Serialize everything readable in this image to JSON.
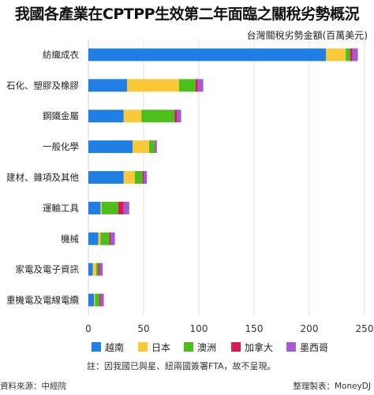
{
  "header": {
    "title": "我國各產業在CPTPP生效第二年面臨之關稅劣勢概況",
    "subtitle": "台灣關稅劣勢金額(百萬美元)"
  },
  "footer": {
    "source": "資料來源：中經院",
    "credit": "整理製表：MoneyDJ",
    "note": "註：因我國已與星、紐兩國簽署FTA，故不呈現。"
  },
  "colors": {
    "越南": "#1f7fe5",
    "日本": "#f9c93a",
    "澳洲": "#4cbf1c",
    "加拿大": "#d81b55",
    "墨西哥": "#a25bd2"
  },
  "chart_data": {
    "type": "bar",
    "orientation": "horizontal",
    "stacked": true,
    "title": "我國各產業在CPTPP生效第二年面臨之關稅劣勢概況",
    "subtitle": "台灣關稅劣勢金額(百萬美元)",
    "categories": [
      "紡織成衣",
      "石化、塑膠及橡膠",
      "鋼鐵金屬",
      "一般化學",
      "建材、雜項及其他",
      "運輸工具",
      "機械",
      "家電及電子資訊",
      "重機電及電線電纜"
    ],
    "series": [
      {
        "name": "越南",
        "values": [
          215,
          35,
          32,
          40,
          32,
          11,
          9,
          4,
          5
        ]
      },
      {
        "name": "日本",
        "values": [
          18,
          47,
          16,
          15,
          10,
          1,
          2,
          3,
          1
        ]
      },
      {
        "name": "澳洲",
        "values": [
          4,
          15,
          30,
          5,
          7,
          15,
          8,
          2,
          4
        ]
      },
      {
        "name": "加拿大",
        "values": [
          2,
          2,
          2,
          0,
          1,
          5,
          1,
          1,
          1
        ]
      },
      {
        "name": "墨西哥",
        "values": [
          5,
          5,
          4,
          2,
          3,
          5,
          4,
          3,
          3
        ]
      }
    ],
    "xlim": [
      0,
      250
    ],
    "xticks": [
      0,
      50,
      100,
      150,
      200,
      250
    ],
    "xlabel": "",
    "ylabel": "",
    "grid": "vertical",
    "legend": "bottom"
  }
}
